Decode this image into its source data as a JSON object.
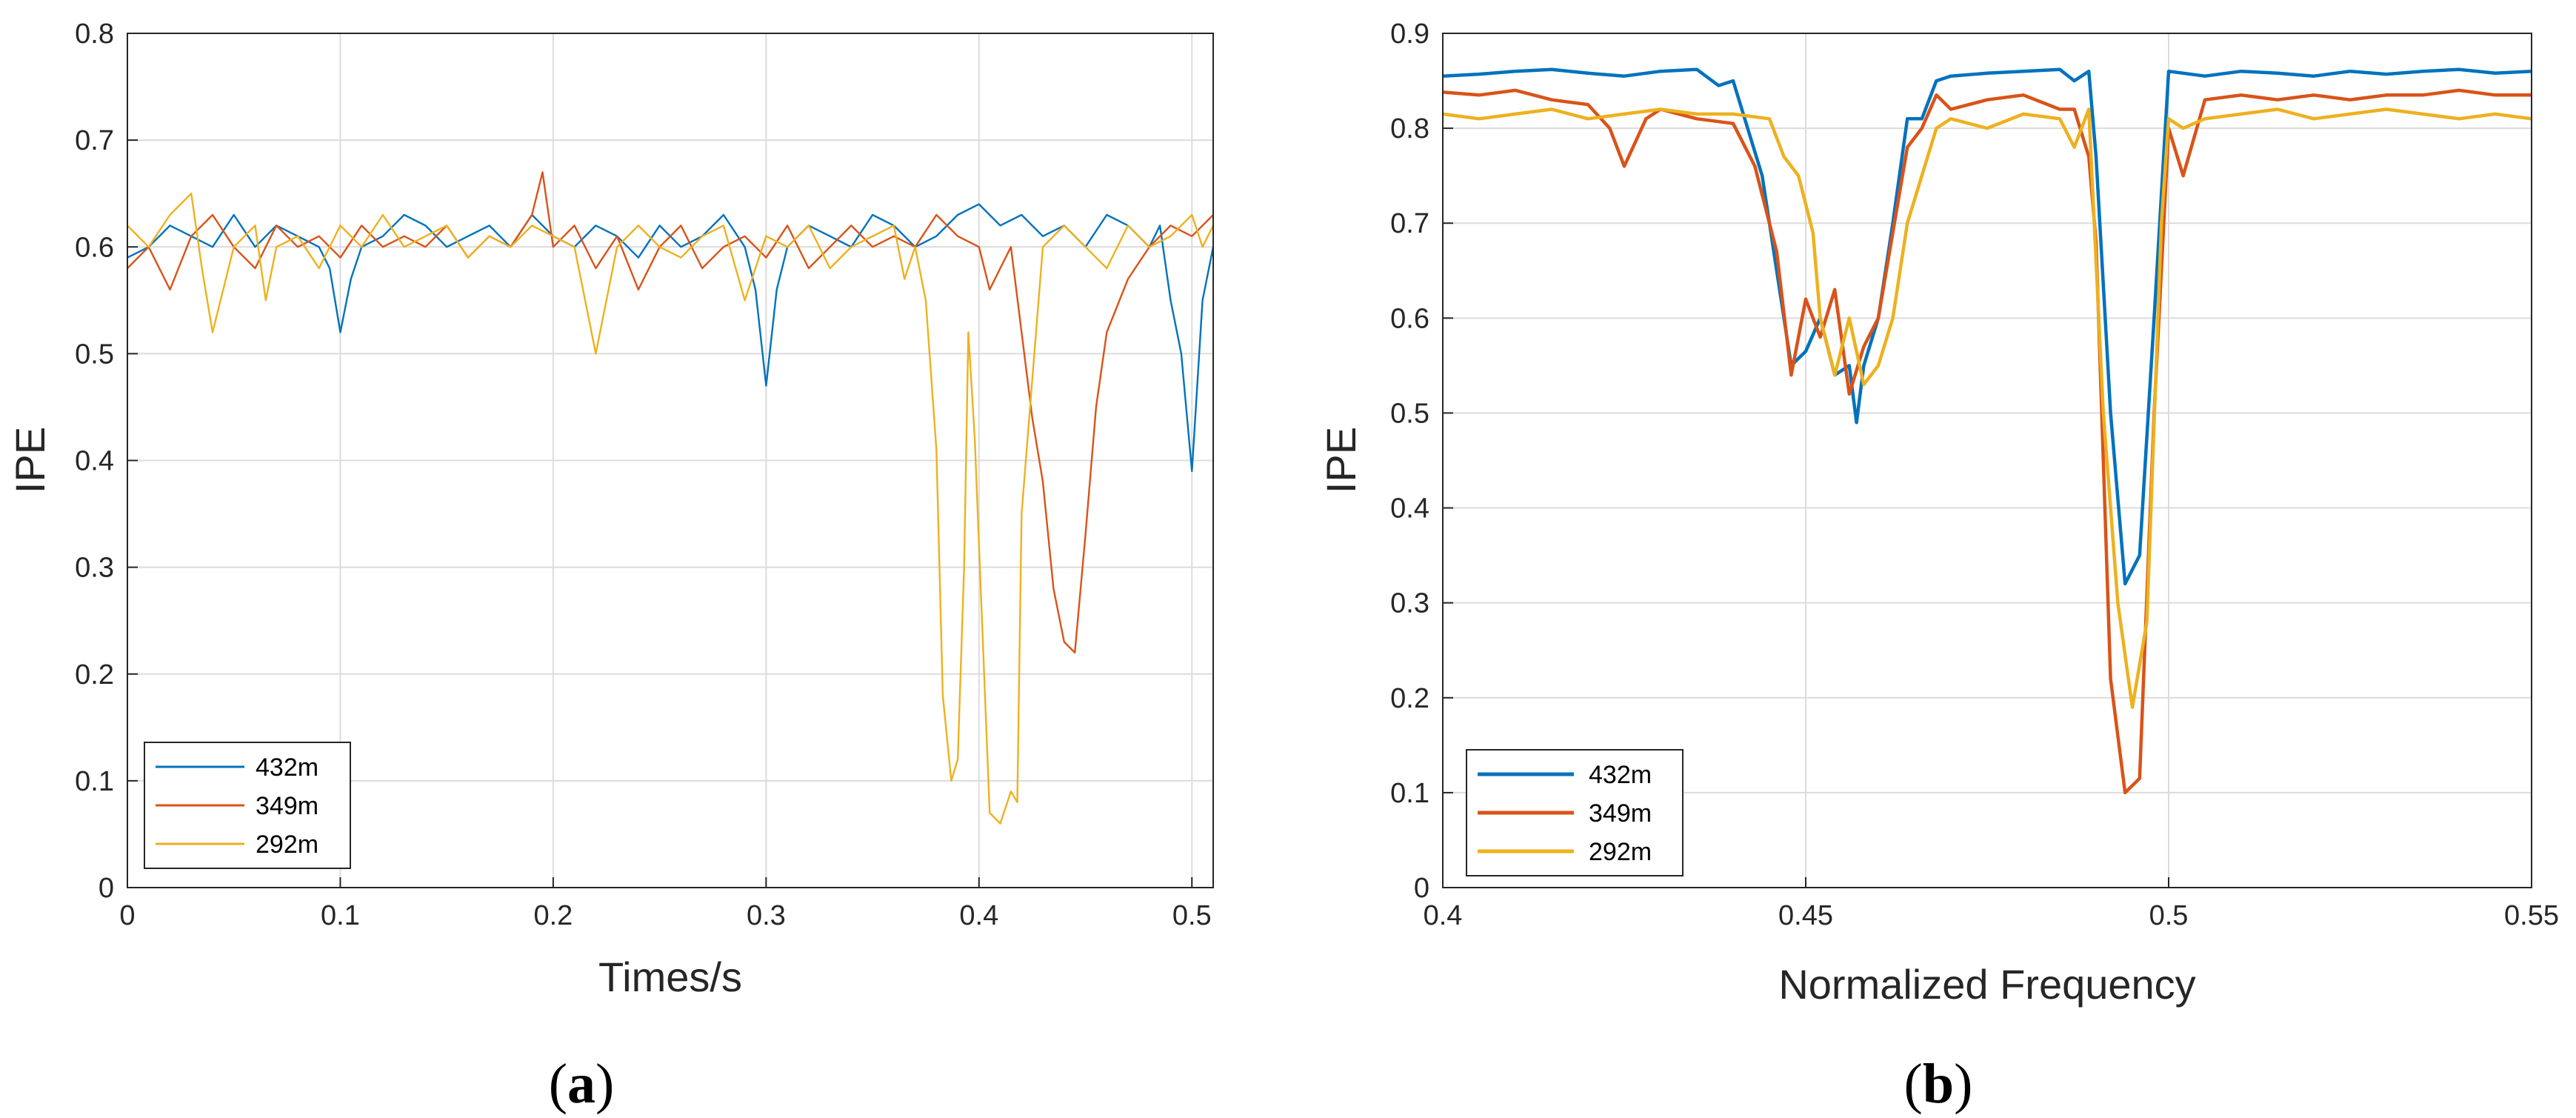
{
  "figure": {
    "captions": [
      {
        "open": "(",
        "letter": "a",
        "close": ")"
      },
      {
        "open": "(",
        "letter": "b",
        "close": ")"
      }
    ]
  },
  "chart_data": [
    {
      "type": "line",
      "id": "a",
      "title": "",
      "xlabel": "Times/s",
      "ylabel": "IPE",
      "xlim": [
        0,
        0.51
      ],
      "ylim": [
        0,
        0.8
      ],
      "xticks": [
        0,
        0.1,
        0.2,
        0.3,
        0.4,
        0.5
      ],
      "xtick_labels": [
        "0",
        "0.1",
        "0.2",
        "0.3",
        "0.4",
        "0.5"
      ],
      "yticks": [
        0,
        0.1,
        0.2,
        0.3,
        0.4,
        0.5,
        0.6,
        0.7,
        0.8
      ],
      "ytick_labels": [
        "0",
        "0.1",
        "0.2",
        "0.3",
        "0.4",
        "0.5",
        "0.6",
        "0.7",
        "0.8"
      ],
      "grid": true,
      "legend_position": "bottom-left",
      "series": [
        {
          "name": "432m",
          "color": "#0072BD",
          "x": [
            0,
            0.01,
            0.02,
            0.03,
            0.04,
            0.05,
            0.06,
            0.07,
            0.08,
            0.09,
            0.095,
            0.1,
            0.105,
            0.11,
            0.12,
            0.13,
            0.14,
            0.15,
            0.16,
            0.17,
            0.18,
            0.19,
            0.2,
            0.21,
            0.22,
            0.23,
            0.24,
            0.25,
            0.26,
            0.27,
            0.28,
            0.29,
            0.295,
            0.3,
            0.305,
            0.31,
            0.32,
            0.33,
            0.34,
            0.35,
            0.36,
            0.37,
            0.38,
            0.39,
            0.4,
            0.41,
            0.42,
            0.43,
            0.44,
            0.45,
            0.46,
            0.47,
            0.48,
            0.485,
            0.49,
            0.495,
            0.5,
            0.505,
            0.51
          ],
          "y": [
            0.59,
            0.6,
            0.62,
            0.61,
            0.6,
            0.63,
            0.6,
            0.62,
            0.61,
            0.6,
            0.58,
            0.52,
            0.57,
            0.6,
            0.61,
            0.63,
            0.62,
            0.6,
            0.61,
            0.62,
            0.6,
            0.63,
            0.61,
            0.6,
            0.62,
            0.61,
            0.59,
            0.62,
            0.6,
            0.61,
            0.63,
            0.6,
            0.56,
            0.47,
            0.56,
            0.6,
            0.62,
            0.61,
            0.6,
            0.63,
            0.62,
            0.6,
            0.61,
            0.63,
            0.64,
            0.62,
            0.63,
            0.61,
            0.62,
            0.6,
            0.63,
            0.62,
            0.6,
            0.62,
            0.55,
            0.5,
            0.39,
            0.55,
            0.6
          ]
        },
        {
          "name": "349m",
          "color": "#D95319",
          "x": [
            0,
            0.01,
            0.02,
            0.03,
            0.04,
            0.05,
            0.06,
            0.07,
            0.08,
            0.09,
            0.1,
            0.11,
            0.12,
            0.13,
            0.14,
            0.15,
            0.16,
            0.17,
            0.18,
            0.19,
            0.195,
            0.2,
            0.21,
            0.22,
            0.23,
            0.24,
            0.25,
            0.26,
            0.27,
            0.28,
            0.29,
            0.3,
            0.31,
            0.32,
            0.33,
            0.34,
            0.35,
            0.36,
            0.37,
            0.38,
            0.39,
            0.4,
            0.405,
            0.41,
            0.415,
            0.42,
            0.425,
            0.43,
            0.435,
            0.44,
            0.445,
            0.45,
            0.455,
            0.46,
            0.47,
            0.48,
            0.49,
            0.5,
            0.51
          ],
          "y": [
            0.58,
            0.6,
            0.56,
            0.61,
            0.63,
            0.6,
            0.58,
            0.62,
            0.6,
            0.61,
            0.59,
            0.62,
            0.6,
            0.61,
            0.6,
            0.62,
            0.59,
            0.61,
            0.6,
            0.63,
            0.67,
            0.6,
            0.62,
            0.58,
            0.61,
            0.56,
            0.6,
            0.62,
            0.58,
            0.6,
            0.61,
            0.59,
            0.62,
            0.58,
            0.6,
            0.62,
            0.6,
            0.61,
            0.6,
            0.63,
            0.61,
            0.6,
            0.56,
            0.58,
            0.6,
            0.52,
            0.44,
            0.38,
            0.28,
            0.23,
            0.22,
            0.33,
            0.45,
            0.52,
            0.57,
            0.6,
            0.62,
            0.61,
            0.63
          ]
        },
        {
          "name": "292m",
          "color": "#EDB120",
          "x": [
            0,
            0.01,
            0.02,
            0.03,
            0.035,
            0.04,
            0.05,
            0.06,
            0.065,
            0.07,
            0.08,
            0.09,
            0.1,
            0.11,
            0.12,
            0.13,
            0.14,
            0.15,
            0.16,
            0.17,
            0.18,
            0.19,
            0.2,
            0.21,
            0.22,
            0.23,
            0.24,
            0.25,
            0.26,
            0.27,
            0.28,
            0.29,
            0.3,
            0.31,
            0.32,
            0.33,
            0.34,
            0.35,
            0.36,
            0.365,
            0.37,
            0.375,
            0.38,
            0.383,
            0.387,
            0.39,
            0.393,
            0.395,
            0.398,
            0.402,
            0.405,
            0.41,
            0.415,
            0.418,
            0.42,
            0.43,
            0.44,
            0.45,
            0.46,
            0.47,
            0.48,
            0.49,
            0.5,
            0.505,
            0.51
          ],
          "y": [
            0.62,
            0.6,
            0.63,
            0.65,
            0.58,
            0.52,
            0.6,
            0.62,
            0.55,
            0.6,
            0.61,
            0.58,
            0.62,
            0.6,
            0.63,
            0.6,
            0.61,
            0.62,
            0.59,
            0.61,
            0.6,
            0.62,
            0.61,
            0.6,
            0.5,
            0.6,
            0.62,
            0.6,
            0.59,
            0.61,
            0.62,
            0.55,
            0.61,
            0.6,
            0.62,
            0.58,
            0.6,
            0.61,
            0.62,
            0.57,
            0.6,
            0.55,
            0.41,
            0.18,
            0.1,
            0.12,
            0.3,
            0.52,
            0.42,
            0.22,
            0.07,
            0.06,
            0.09,
            0.08,
            0.35,
            0.6,
            0.62,
            0.6,
            0.58,
            0.62,
            0.6,
            0.61,
            0.63,
            0.6,
            0.62
          ]
        }
      ]
    },
    {
      "type": "line",
      "id": "b",
      "title": "",
      "xlabel": "Normalized Frequency",
      "ylabel": "IPE",
      "xlim": [
        0.4,
        0.55
      ],
      "ylim": [
        0,
        0.9
      ],
      "xticks": [
        0.4,
        0.45,
        0.5,
        0.55
      ],
      "xtick_labels": [
        "0.4",
        "0.45",
        "0.5",
        "0.55"
      ],
      "yticks": [
        0,
        0.1,
        0.2,
        0.3,
        0.4,
        0.5,
        0.6,
        0.7,
        0.8,
        0.9
      ],
      "ytick_labels": [
        "0",
        "0.1",
        "0.2",
        "0.3",
        "0.4",
        "0.5",
        "0.6",
        "0.7",
        "0.8",
        "0.9"
      ],
      "grid": true,
      "legend_position": "bottom-left",
      "series": [
        {
          "name": "432m",
          "color": "#0072BD",
          "x": [
            0.4,
            0.405,
            0.41,
            0.415,
            0.42,
            0.425,
            0.43,
            0.435,
            0.438,
            0.44,
            0.442,
            0.444,
            0.446,
            0.448,
            0.45,
            0.452,
            0.454,
            0.456,
            0.457,
            0.458,
            0.46,
            0.462,
            0.464,
            0.466,
            0.468,
            0.47,
            0.475,
            0.48,
            0.485,
            0.487,
            0.489,
            0.49,
            0.492,
            0.494,
            0.496,
            0.498,
            0.5,
            0.505,
            0.51,
            0.515,
            0.52,
            0.525,
            0.53,
            0.535,
            0.54,
            0.545,
            0.55
          ],
          "y": [
            0.855,
            0.857,
            0.86,
            0.862,
            0.858,
            0.855,
            0.86,
            0.862,
            0.845,
            0.85,
            0.8,
            0.75,
            0.65,
            0.55,
            0.565,
            0.6,
            0.54,
            0.55,
            0.49,
            0.55,
            0.6,
            0.7,
            0.81,
            0.81,
            0.85,
            0.855,
            0.858,
            0.86,
            0.862,
            0.85,
            0.86,
            0.77,
            0.5,
            0.32,
            0.35,
            0.6,
            0.86,
            0.855,
            0.86,
            0.858,
            0.855,
            0.86,
            0.857,
            0.86,
            0.862,
            0.858,
            0.86
          ]
        },
        {
          "name": "349m",
          "color": "#D95319",
          "x": [
            0.4,
            0.405,
            0.41,
            0.415,
            0.42,
            0.423,
            0.425,
            0.428,
            0.43,
            0.435,
            0.44,
            0.443,
            0.446,
            0.448,
            0.45,
            0.452,
            0.454,
            0.456,
            0.458,
            0.46,
            0.462,
            0.464,
            0.466,
            0.468,
            0.47,
            0.475,
            0.48,
            0.485,
            0.487,
            0.489,
            0.49,
            0.492,
            0.494,
            0.496,
            0.498,
            0.5,
            0.502,
            0.505,
            0.51,
            0.515,
            0.52,
            0.525,
            0.53,
            0.535,
            0.54,
            0.545,
            0.55
          ],
          "y": [
            0.838,
            0.835,
            0.84,
            0.83,
            0.825,
            0.8,
            0.76,
            0.81,
            0.82,
            0.81,
            0.805,
            0.76,
            0.67,
            0.54,
            0.62,
            0.58,
            0.63,
            0.52,
            0.57,
            0.6,
            0.69,
            0.78,
            0.8,
            0.835,
            0.82,
            0.83,
            0.835,
            0.82,
            0.82,
            0.77,
            0.68,
            0.22,
            0.1,
            0.115,
            0.5,
            0.8,
            0.75,
            0.83,
            0.835,
            0.83,
            0.835,
            0.83,
            0.835,
            0.835,
            0.84,
            0.835,
            0.835
          ]
        },
        {
          "name": "292m",
          "color": "#EDB120",
          "x": [
            0.4,
            0.405,
            0.41,
            0.415,
            0.42,
            0.425,
            0.43,
            0.435,
            0.44,
            0.445,
            0.447,
            0.449,
            0.451,
            0.452,
            0.454,
            0.456,
            0.458,
            0.46,
            0.462,
            0.464,
            0.466,
            0.468,
            0.47,
            0.475,
            0.48,
            0.485,
            0.487,
            0.489,
            0.491,
            0.493,
            0.495,
            0.497,
            0.499,
            0.5,
            0.502,
            0.505,
            0.51,
            0.515,
            0.52,
            0.525,
            0.53,
            0.535,
            0.54,
            0.545,
            0.55
          ],
          "y": [
            0.815,
            0.81,
            0.815,
            0.82,
            0.81,
            0.815,
            0.82,
            0.815,
            0.815,
            0.81,
            0.77,
            0.75,
            0.69,
            0.6,
            0.54,
            0.6,
            0.53,
            0.55,
            0.6,
            0.7,
            0.75,
            0.8,
            0.81,
            0.8,
            0.815,
            0.81,
            0.78,
            0.82,
            0.5,
            0.3,
            0.19,
            0.28,
            0.7,
            0.81,
            0.8,
            0.81,
            0.815,
            0.82,
            0.81,
            0.815,
            0.82,
            0.815,
            0.81,
            0.815,
            0.81
          ]
        }
      ]
    }
  ]
}
